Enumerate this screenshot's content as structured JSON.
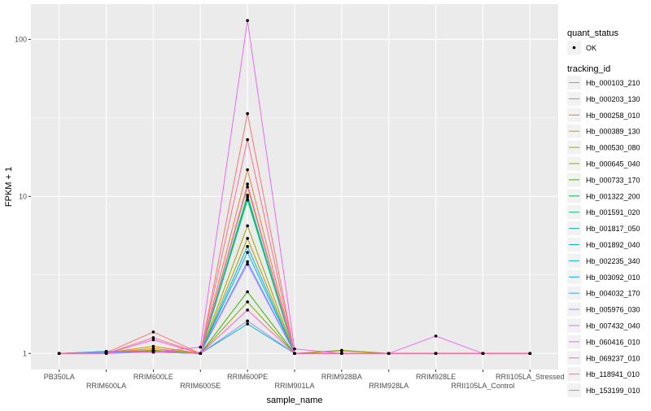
{
  "chart_data": {
    "type": "line",
    "xlabel": "sample_name",
    "ylabel": "FPKM + 1",
    "y_scale": "log10",
    "ylim": [
      0.79,
      168
    ],
    "y_ticks": [
      1,
      10,
      100
    ],
    "y_tick_labels": [
      "1",
      "10",
      "100"
    ],
    "grid": true,
    "legend_placement": "right",
    "categories": [
      "PB350LA",
      "RRIM600LA",
      "RRIM600LE",
      "RRIM600SE",
      "RRIM600PE",
      "RRIM901LA",
      "RRIM928BA",
      "RRIM928LA",
      "RRIM928LE",
      "RRII105LA_Control",
      "RRII105LA_Stressed"
    ],
    "shape_legend": {
      "title": "quant_status",
      "entries": [
        "OK"
      ]
    },
    "color_legend_title": "tracking_id",
    "series": [
      {
        "name": "Hb_000103_210",
        "color": "#F8766D",
        "values": [
          1,
          1.01,
          1.37,
          1.0,
          33.7,
          1.0,
          1,
          1,
          1,
          1,
          1
        ]
      },
      {
        "name": "Hb_000203_130",
        "color": "#EA8331",
        "values": [
          1,
          1.01,
          1.075,
          1.0,
          14.8,
          1.0,
          1,
          1,
          1,
          1,
          1
        ]
      },
      {
        "name": "Hb_000258_010",
        "color": "#D89000",
        "values": [
          1,
          1.01,
          1.11,
          1.0,
          11.5,
          1.0,
          1,
          1,
          1,
          1,
          1
        ]
      },
      {
        "name": "Hb_000389_130",
        "color": "#C09B00",
        "values": [
          1,
          1.01,
          1.05,
          1.0,
          5.4,
          1.0,
          1,
          1,
          1,
          1,
          1
        ]
      },
      {
        "name": "Hb_000530_080",
        "color": "#A3A500",
        "values": [
          1,
          1.01,
          1.05,
          1.0,
          6.5,
          1.0,
          1.047,
          1,
          1,
          1,
          1
        ]
      },
      {
        "name": "Hb_000645_040",
        "color": "#7CAE00",
        "values": [
          1,
          1.01,
          1.04,
          1.0,
          2.13,
          1.0,
          1.04,
          1,
          1,
          1,
          1
        ]
      },
      {
        "name": "Hb_000733_170",
        "color": "#39B600",
        "values": [
          1,
          1.01,
          1.04,
          1.0,
          2.47,
          1.0,
          1,
          1,
          1,
          1,
          1
        ]
      },
      {
        "name": "Hb_001322_200",
        "color": "#00BB4E",
        "values": [
          1,
          1.01,
          1.03,
          1.0,
          9.9,
          1.0,
          1,
          1,
          1,
          1,
          1
        ]
      },
      {
        "name": "Hb_001591_020",
        "color": "#00BF7D",
        "values": [
          1,
          1.01,
          1.03,
          1.0,
          9.5,
          1.0,
          1,
          1,
          1,
          1,
          1
        ]
      },
      {
        "name": "Hb_001817_050",
        "color": "#00C1A3",
        "values": [
          1,
          1.01,
          1.03,
          1.0,
          10.2,
          1.0,
          1,
          1,
          1,
          1,
          1
        ]
      },
      {
        "name": "Hb_001892_040",
        "color": "#00BFC4",
        "values": [
          1,
          1.02,
          1.03,
          1.0,
          1.54,
          1.0,
          1,
          1,
          1,
          1,
          1
        ]
      },
      {
        "name": "Hb_002235_340",
        "color": "#00BAE0",
        "values": [
          1,
          1.02,
          1.02,
          1.0,
          4.8,
          1.0,
          1,
          1,
          1,
          1,
          1
        ]
      },
      {
        "name": "Hb_003092_010",
        "color": "#00B0F6",
        "values": [
          1,
          1.03,
          1.02,
          1.0,
          4.4,
          1.0,
          1,
          1,
          1,
          1,
          1
        ]
      },
      {
        "name": "Hb_004032_170",
        "color": "#35A2FF",
        "values": [
          1,
          1.03,
          1.02,
          1.0,
          3.84,
          1.0,
          1,
          1,
          1,
          1,
          1
        ]
      },
      {
        "name": "Hb_005976_030",
        "color": "#9590FF",
        "values": [
          1,
          1.01,
          1.02,
          1.0,
          1.61,
          1.0,
          1,
          1,
          1,
          1,
          1
        ]
      },
      {
        "name": "Hb_007432_040",
        "color": "#C77CFF",
        "values": [
          1,
          1.01,
          1.02,
          1.0,
          3.7,
          1.0,
          1,
          1,
          1,
          1,
          1
        ]
      },
      {
        "name": "Hb_060416_010",
        "color": "#E76BF3",
        "values": [
          1,
          1.0,
          1.02,
          1.097,
          132,
          1.068,
          1,
          1,
          1.29,
          1,
          1
        ]
      },
      {
        "name": "Hb_069237_010",
        "color": "#FA62DB",
        "values": [
          1,
          1.0,
          1.22,
          1.0,
          12,
          1.0,
          1,
          1,
          1,
          1,
          1
        ]
      },
      {
        "name": "Hb_118941_010",
        "color": "#FF62BC",
        "values": [
          1,
          1.0,
          1.03,
          1.0,
          1.89,
          1.0,
          1,
          1,
          1,
          1,
          1
        ]
      },
      {
        "name": "Hb_153199_010",
        "color": "#FF6C91",
        "values": [
          1,
          1.0,
          1.26,
          1.0,
          23,
          1.0,
          1,
          1,
          1,
          1,
          1
        ]
      }
    ]
  }
}
